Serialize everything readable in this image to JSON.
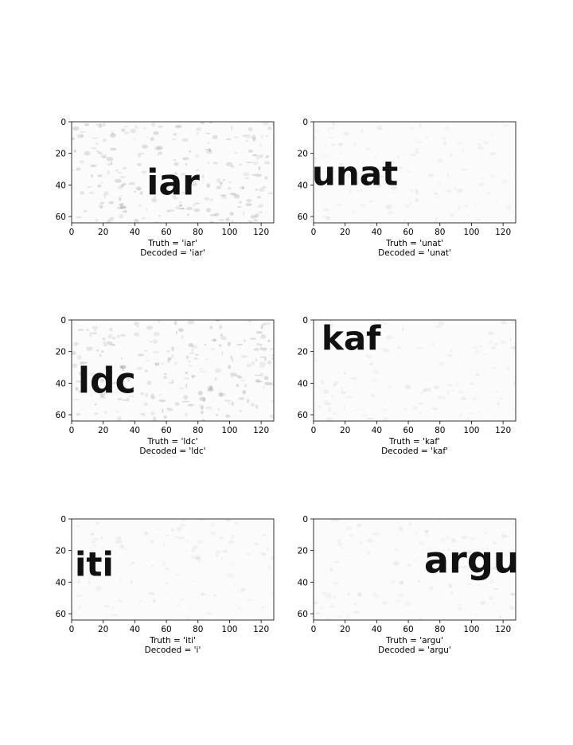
{
  "chart_data": [
    {
      "type": "image",
      "word": "iar",
      "truth": "Truth = 'iar'",
      "decoded": "Decoded = 'iar'",
      "x": 47.5,
      "y": 46,
      "size": 42,
      "noise": "heavy",
      "xlim": [
        0,
        128
      ],
      "ylim": [
        0,
        64
      ],
      "xticks": [
        0,
        20,
        40,
        60,
        80,
        100,
        120
      ],
      "yticks": [
        0,
        20,
        40,
        60
      ]
    },
    {
      "type": "image",
      "word": "unat",
      "truth": "Truth = 'unat'",
      "decoded": "Decoded = 'unat'",
      "x": -1,
      "y": 40,
      "size": 40,
      "noise": "light",
      "xlim": [
        0,
        128
      ],
      "ylim": [
        0,
        64
      ],
      "xticks": [
        0,
        20,
        40,
        60,
        80,
        100,
        120
      ],
      "yticks": [
        0,
        20,
        40,
        60
      ]
    },
    {
      "type": "image",
      "word": "ldc",
      "truth": "Truth = 'ldc'",
      "decoded": "Decoded = 'ldc'",
      "x": 4,
      "y": 46,
      "size": 42,
      "noise": "heavy",
      "xlim": [
        0,
        128
      ],
      "ylim": [
        0,
        64
      ],
      "xticks": [
        0,
        20,
        40,
        60,
        80,
        100,
        120
      ],
      "yticks": [
        0,
        20,
        40,
        60
      ]
    },
    {
      "type": "image",
      "word": "kaf",
      "truth": "Truth = 'kaf'",
      "decoded": "Decoded = 'kaf'",
      "x": 5,
      "y": 19,
      "size": 40,
      "noise": "light",
      "xlim": [
        0,
        128
      ],
      "ylim": [
        0,
        64
      ],
      "xticks": [
        0,
        20,
        40,
        60,
        80,
        100,
        120
      ],
      "yticks": [
        0,
        20,
        40,
        60
      ]
    },
    {
      "type": "image",
      "word": "iti",
      "truth": "Truth = 'iti'",
      "decoded": "Decoded = 'i'",
      "x": 2,
      "y": 36,
      "size": 40,
      "noise": "light",
      "xlim": [
        0,
        128
      ],
      "ylim": [
        0,
        64
      ],
      "xticks": [
        0,
        20,
        40,
        60,
        80,
        100,
        120
      ],
      "yticks": [
        0,
        20,
        40,
        60
      ]
    },
    {
      "type": "image",
      "word": "argu",
      "truth": "Truth = 'argu'",
      "decoded": "Decoded = 'argu'",
      "x": 70,
      "y": 34,
      "size": 44,
      "noise": "light",
      "xlim": [
        0,
        128
      ],
      "ylim": [
        0,
        64
      ],
      "xticks": [
        0,
        20,
        40,
        60,
        80,
        100,
        120
      ],
      "yticks": [
        0,
        20,
        40,
        60
      ]
    }
  ]
}
